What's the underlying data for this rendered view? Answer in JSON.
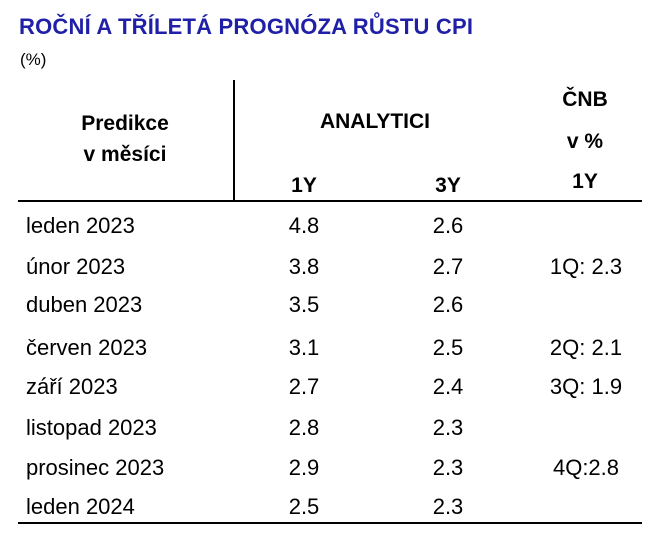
{
  "title": "ROČNÍ A TŘÍLETÁ PROGNÓZA  RŮSTU CPI",
  "unit": "(%)",
  "colors": {
    "title": "#1f1fa8",
    "text": "#000000"
  },
  "header": {
    "predikce_line1": "Predikce",
    "predikce_line2": "v měsíci",
    "analytici": "ANALYTICI",
    "col_1y": "1Y",
    "col_3y": "3Y",
    "cnb_line1": "ČNB",
    "cnb_line2": "v %",
    "cnb_line3": "1Y"
  },
  "rows": [
    {
      "month": "leden 2023",
      "y1": "4.8",
      "y3": "2.6",
      "cnb": ""
    },
    {
      "month": "únor 2023",
      "y1": "3.8",
      "y3": "2.7",
      "cnb": "1Q: 2.3"
    },
    {
      "month": "duben 2023",
      "y1": "3.5",
      "y3": "2.6",
      "cnb": ""
    },
    {
      "month": "červen 2023",
      "y1": "3.1",
      "y3": "2.5",
      "cnb": "2Q: 2.1"
    },
    {
      "month": "září 2023",
      "y1": "2.7",
      "y3": "2.4",
      "cnb": "3Q: 1.9"
    },
    {
      "month": "listopad 2023",
      "y1": "2.8",
      "y3": "2.3",
      "cnb": ""
    },
    {
      "month": "prosinec 2023",
      "y1": "2.9",
      "y3": "2.3",
      "cnb": "4Q:2.8"
    },
    {
      "month": "leden 2024",
      "y1": "2.5",
      "y3": "2.3",
      "cnb": ""
    }
  ]
}
